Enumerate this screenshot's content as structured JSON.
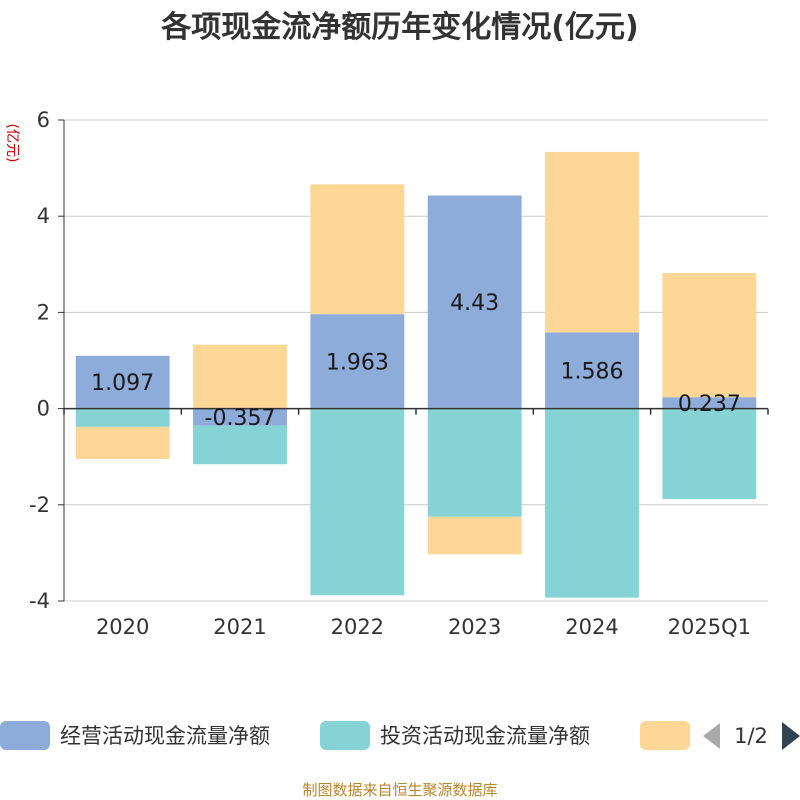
{
  "title": "各项现金流净额历年变化情况(亿元)",
  "footer": "制图数据来自恒生聚源数据库",
  "legend_pager": "1/2",
  "colors": {
    "operating": "#8eacd9",
    "investing": "#86d3d5",
    "financing": "#fed796",
    "axis": "#333333",
    "grid": "#cccccc"
  },
  "chart_data": {
    "type": "bar",
    "stacked": true,
    "title": "各项现金流净额历年变化情况(亿元)",
    "ylabel": "(亿元)",
    "xlabel": "",
    "ylim": [
      -4,
      6
    ],
    "yticks": [
      -4,
      -2,
      0,
      2,
      4,
      6
    ],
    "grid": true,
    "legend_position": "bottom",
    "categories": [
      "2020",
      "2021",
      "2022",
      "2023",
      "2024",
      "2025Q1"
    ],
    "series": [
      {
        "name": "经营活动现金流量净额",
        "key": "operating",
        "values": [
          1.097,
          -0.357,
          1.963,
          4.43,
          1.586,
          0.237
        ],
        "labels": [
          "1.097",
          "-0.357",
          "1.963",
          "4.43",
          "1.586",
          "0.237"
        ]
      },
      {
        "name": "投资活动现金流量净额",
        "key": "investing",
        "values": [
          -0.38,
          -0.8,
          -3.88,
          -2.25,
          -3.93,
          -1.88
        ]
      },
      {
        "name": "",
        "key": "financing",
        "values": [
          -0.67,
          1.33,
          2.7,
          -0.78,
          3.75,
          2.58
        ]
      }
    ]
  }
}
